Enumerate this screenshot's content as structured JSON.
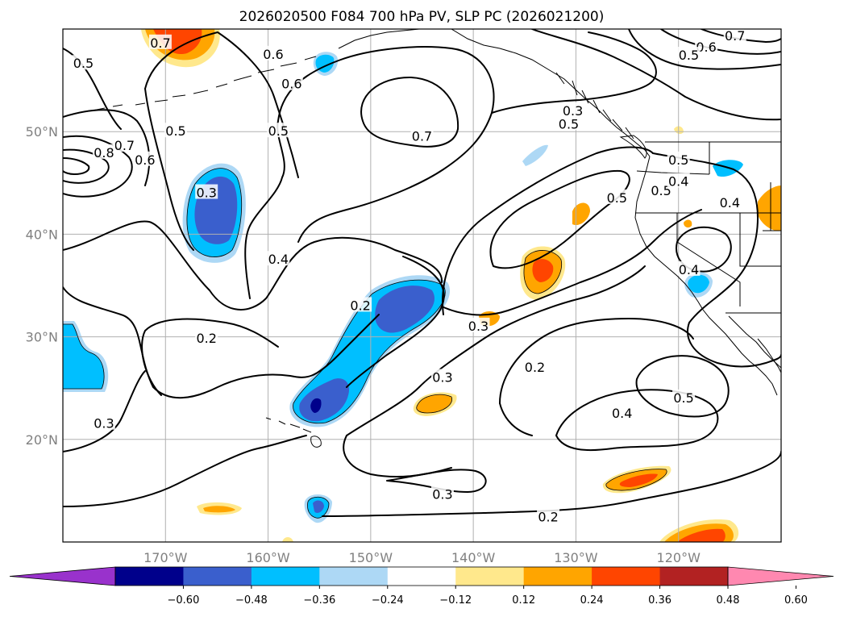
{
  "title": "2026020500 F084 700 hPa PV, SLP PC (2026021200)",
  "extent": {
    "lon": [
      -180,
      -110
    ],
    "lat": [
      10,
      60
    ]
  },
  "lat_ticks": [
    {
      "value": 20,
      "label": "20°N"
    },
    {
      "value": 30,
      "label": "30°N"
    },
    {
      "value": 40,
      "label": "40°N"
    },
    {
      "value": 50,
      "label": "50°N"
    }
  ],
  "lon_ticks": [
    {
      "value": -170,
      "label": "170°W"
    },
    {
      "value": -160,
      "label": "160°W"
    },
    {
      "value": -150,
      "label": "150°W"
    },
    {
      "value": -140,
      "label": "140°W"
    },
    {
      "value": -130,
      "label": "130°W"
    },
    {
      "value": -120,
      "label": "120°W"
    }
  ],
  "colorbar": {
    "colors": [
      "#9932cc",
      "#00008b",
      "#3a5fcd",
      "#00bfff",
      "#add8f5",
      "#ffffff",
      "#ffe88c",
      "#ffa500",
      "#ff4500",
      "#b22222",
      "#ff88b0"
    ],
    "tick_labels": [
      "−0.60",
      "−0.48",
      "−0.36",
      "−0.24",
      "−0.12",
      "0.12",
      "0.24",
      "0.36",
      "0.48",
      "0.60"
    ]
  },
  "contour_labels": [
    {
      "text": "0.7",
      "lon": -170.5,
      "lat": 58.6
    },
    {
      "text": "0.6",
      "lon": -159.5,
      "lat": 57.5
    },
    {
      "text": "0.6",
      "lon": -157.7,
      "lat": 54.6
    },
    {
      "text": "0.5",
      "lon": -159.0,
      "lat": 50.0
    },
    {
      "text": "0.5",
      "lon": -178.0,
      "lat": 56.6
    },
    {
      "text": "0.5",
      "lon": -169.0,
      "lat": 50.0
    },
    {
      "text": "0.6",
      "lon": -172.0,
      "lat": 47.2
    },
    {
      "text": "0.7",
      "lon": -174.0,
      "lat": 48.6
    },
    {
      "text": "0.8",
      "lon": -176.0,
      "lat": 47.9
    },
    {
      "text": "0.7",
      "lon": -145.0,
      "lat": 49.5
    },
    {
      "text": "0.3",
      "lon": -166.0,
      "lat": 44.0
    },
    {
      "text": "0.4",
      "lon": -159.0,
      "lat": 37.5
    },
    {
      "text": "0.2",
      "lon": -151.0,
      "lat": 33.0
    },
    {
      "text": "0.2",
      "lon": -166.0,
      "lat": 29.8
    },
    {
      "text": "0.3",
      "lon": -176.0,
      "lat": 21.5
    },
    {
      "text": "0.3",
      "lon": -130.3,
      "lat": 52.0
    },
    {
      "text": "0.5",
      "lon": -130.7,
      "lat": 50.7
    },
    {
      "text": "0.5",
      "lon": -121.7,
      "lat": 44.2
    },
    {
      "text": "0.6",
      "lon": -117.3,
      "lat": 58.2
    },
    {
      "text": "0.7",
      "lon": -114.5,
      "lat": 59.3
    },
    {
      "text": "0.5",
      "lon": -119.0,
      "lat": 57.4
    },
    {
      "text": "0.5",
      "lon": -126.0,
      "lat": 43.5
    },
    {
      "text": "0.5",
      "lon": -120.0,
      "lat": 47.2
    },
    {
      "text": "0.4",
      "lon": -120.0,
      "lat": 45.1
    },
    {
      "text": "0.4",
      "lon": -115.0,
      "lat": 43.0
    },
    {
      "text": "0.4",
      "lon": -119.0,
      "lat": 36.5
    },
    {
      "text": "0.3",
      "lon": -139.5,
      "lat": 31.0
    },
    {
      "text": "0.3",
      "lon": -143.0,
      "lat": 26.0
    },
    {
      "text": "0.2",
      "lon": -134.0,
      "lat": 27.0
    },
    {
      "text": "0.4",
      "lon": -125.5,
      "lat": 22.5
    },
    {
      "text": "0.5",
      "lon": -119.5,
      "lat": 24.0
    },
    {
      "text": "0.3",
      "lon": -143.0,
      "lat": 14.6
    },
    {
      "text": "0.2",
      "lon": -132.7,
      "lat": 12.4
    }
  ]
}
